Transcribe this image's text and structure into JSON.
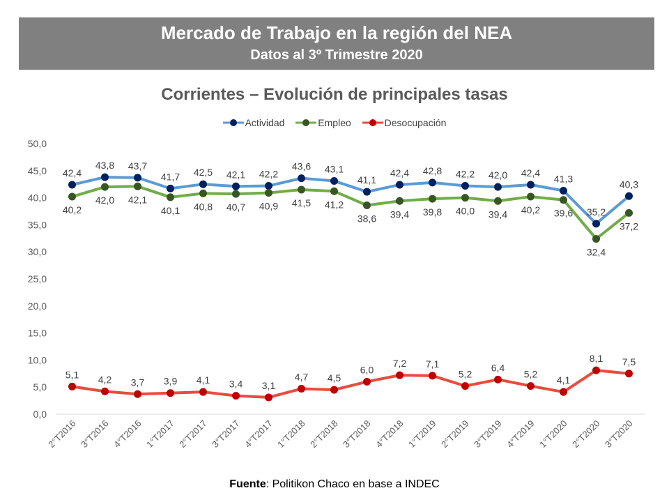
{
  "banner": {
    "title": "Mercado de Trabajo en la región del NEA",
    "subtitle": "Datos al 3º Trimestre 2020"
  },
  "chart_data": {
    "type": "line",
    "title": "Corrientes – Evolución de principales tasas",
    "xlabel": "",
    "ylabel": "",
    "ylim": [
      0,
      50
    ],
    "yticks": [
      "0,0",
      "5,0",
      "10,0",
      "15,0",
      "20,0",
      "25,0",
      "30,0",
      "35,0",
      "40,0",
      "45,0",
      "50,0"
    ],
    "legend_position": "top",
    "grid": false,
    "categories": [
      "2°T2016",
      "3°T2016",
      "4°T2016",
      "1°T2017",
      "2°T2017",
      "3°T2017",
      "4°T2017",
      "1°T2018",
      "2°T2018",
      "3°T2018",
      "4°T2018",
      "1°T2019",
      "2°T2019",
      "3°T2019",
      "4°T2019",
      "1°T2020",
      "2°T2020",
      "3°T2020"
    ],
    "series": [
      {
        "name": "Actividad",
        "line_color": "#5B9BD5",
        "marker_color": "#002060",
        "label_position": "above",
        "values": [
          42.4,
          43.8,
          43.7,
          41.7,
          42.5,
          42.1,
          42.2,
          43.6,
          43.1,
          41.1,
          42.4,
          42.8,
          42.2,
          42.0,
          42.4,
          41.3,
          35.2,
          40.3
        ],
        "labels": [
          "42,4",
          "43,8",
          "43,7",
          "41,7",
          "42,5",
          "42,1",
          "42,2",
          "43,6",
          "43,1",
          "41,1",
          "42,4",
          "42,8",
          "42,2",
          "42,0",
          "42,4",
          "41,3",
          "35,2",
          "40,3"
        ]
      },
      {
        "name": "Empleo",
        "line_color": "#70AD47",
        "marker_color": "#375623",
        "label_position": "below",
        "values": [
          40.2,
          42.0,
          42.1,
          40.1,
          40.8,
          40.7,
          40.9,
          41.5,
          41.2,
          38.6,
          39.4,
          39.8,
          40.0,
          39.4,
          40.2,
          39.6,
          32.4,
          37.2
        ],
        "labels": [
          "40,2",
          "42,0",
          "42,1",
          "40,1",
          "40,8",
          "40,7",
          "40,9",
          "41,5",
          "41,2",
          "38,6",
          "39,4",
          "39,8",
          "40,0",
          "39,4",
          "40,2",
          "39,6",
          "32,4",
          "37,2"
        ]
      },
      {
        "name": "Desocupación",
        "line_color": "#E84C3D",
        "marker_color": "#C00000",
        "label_position": "above",
        "values": [
          5.1,
          4.2,
          3.7,
          3.9,
          4.1,
          3.4,
          3.1,
          4.7,
          4.5,
          6.0,
          7.2,
          7.1,
          5.2,
          6.4,
          5.2,
          4.1,
          8.1,
          7.5
        ],
        "labels": [
          "5,1",
          "4,2",
          "3,7",
          "3,9",
          "4,1",
          "3,4",
          "3,1",
          "4,7",
          "4,5",
          "6,0",
          "7,2",
          "7,1",
          "5,2",
          "6,4",
          "5,2",
          "4,1",
          "8,1",
          "7,5"
        ]
      }
    ]
  },
  "source": {
    "label": "Fuente",
    "text": ": Politikon Chaco en base a INDEC"
  }
}
